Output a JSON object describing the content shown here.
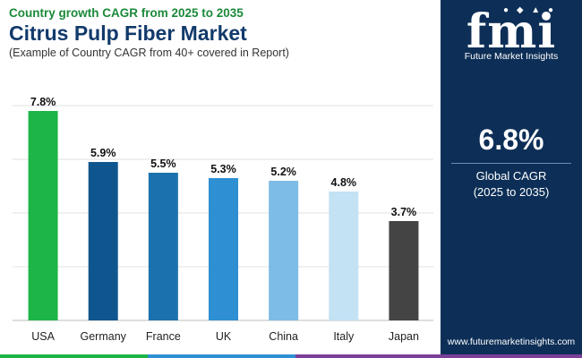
{
  "header": {
    "subtitle": "Country growth CAGR from 2025 to 2035",
    "title": "Citrus Pulp Fiber Market",
    "note": "(Example of Country CAGR from 40+ covered in Report)"
  },
  "sidebar": {
    "logo": "fmi",
    "logo_sub": "Future Market Insights",
    "cagr_value": "6.8%",
    "cagr_label": "Global CAGR",
    "cagr_period": "(2025 to 2035)",
    "url": "www.futuremarketinsights.com"
  },
  "chart_data": {
    "type": "bar",
    "categories": [
      "USA",
      "Germany",
      "France",
      "UK",
      "China",
      "Italy",
      "Japan"
    ],
    "values": [
      7.8,
      5.9,
      5.5,
      5.3,
      5.2,
      4.8,
      3.7
    ],
    "labels": [
      "7.8%",
      "5.9%",
      "5.5%",
      "5.3%",
      "5.2%",
      "4.8%",
      "3.7%"
    ],
    "colors": [
      "#1db547",
      "#10568e",
      "#1b71ad",
      "#2e8fd2",
      "#7dbce4",
      "#c3e2f4",
      "#444444"
    ],
    "title": "",
    "xlabel": "",
    "ylabel": "",
    "ylim": [
      0,
      8
    ],
    "grid": true
  },
  "colors": {
    "accent_green": "#1b8a3a",
    "title_navy": "#123a6b",
    "side_bg": "#0d2f57"
  }
}
